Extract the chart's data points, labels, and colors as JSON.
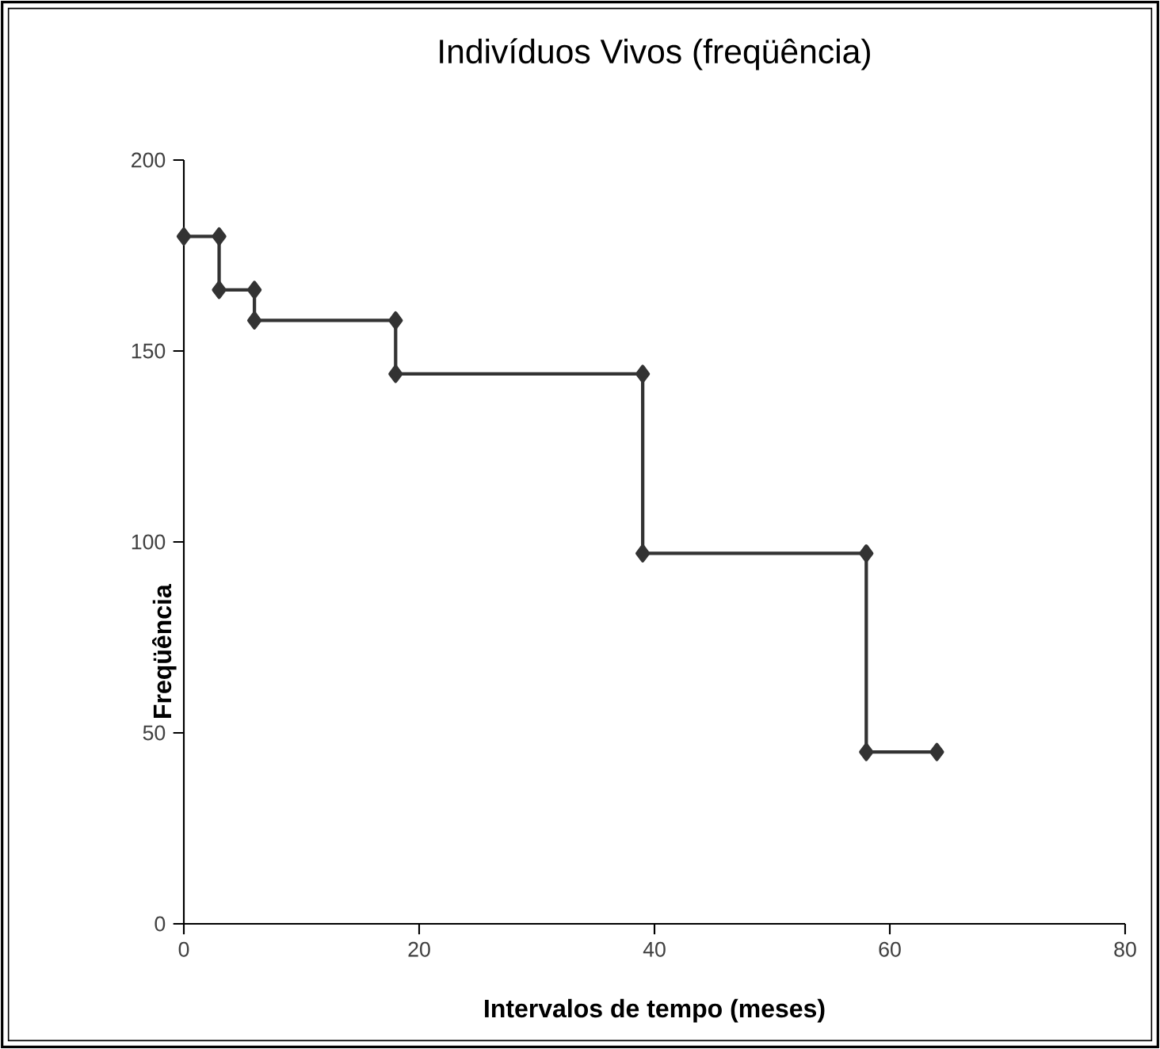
{
  "chart_data": {
    "type": "line",
    "title": "Indivíduos Vivos  (freqüência)",
    "xlabel": "Intervalos de tempo (meses)",
    "ylabel": "Freqüência",
    "x": [
      0,
      3,
      3,
      6,
      6,
      18,
      18,
      39,
      39,
      58,
      58,
      64
    ],
    "series": [
      {
        "color": "#333333",
        "values": [
          180,
          180,
          166,
          166,
          158,
          158,
          144,
          144,
          97,
          97,
          45,
          45
        ]
      }
    ],
    "xlim": [
      0,
      80
    ],
    "ylim": [
      0,
      200
    ],
    "xticks": [
      0,
      20,
      40,
      60,
      80
    ],
    "yticks": [
      0,
      50,
      100,
      150,
      200
    ],
    "marker": "diamond",
    "line_style": "solid"
  }
}
